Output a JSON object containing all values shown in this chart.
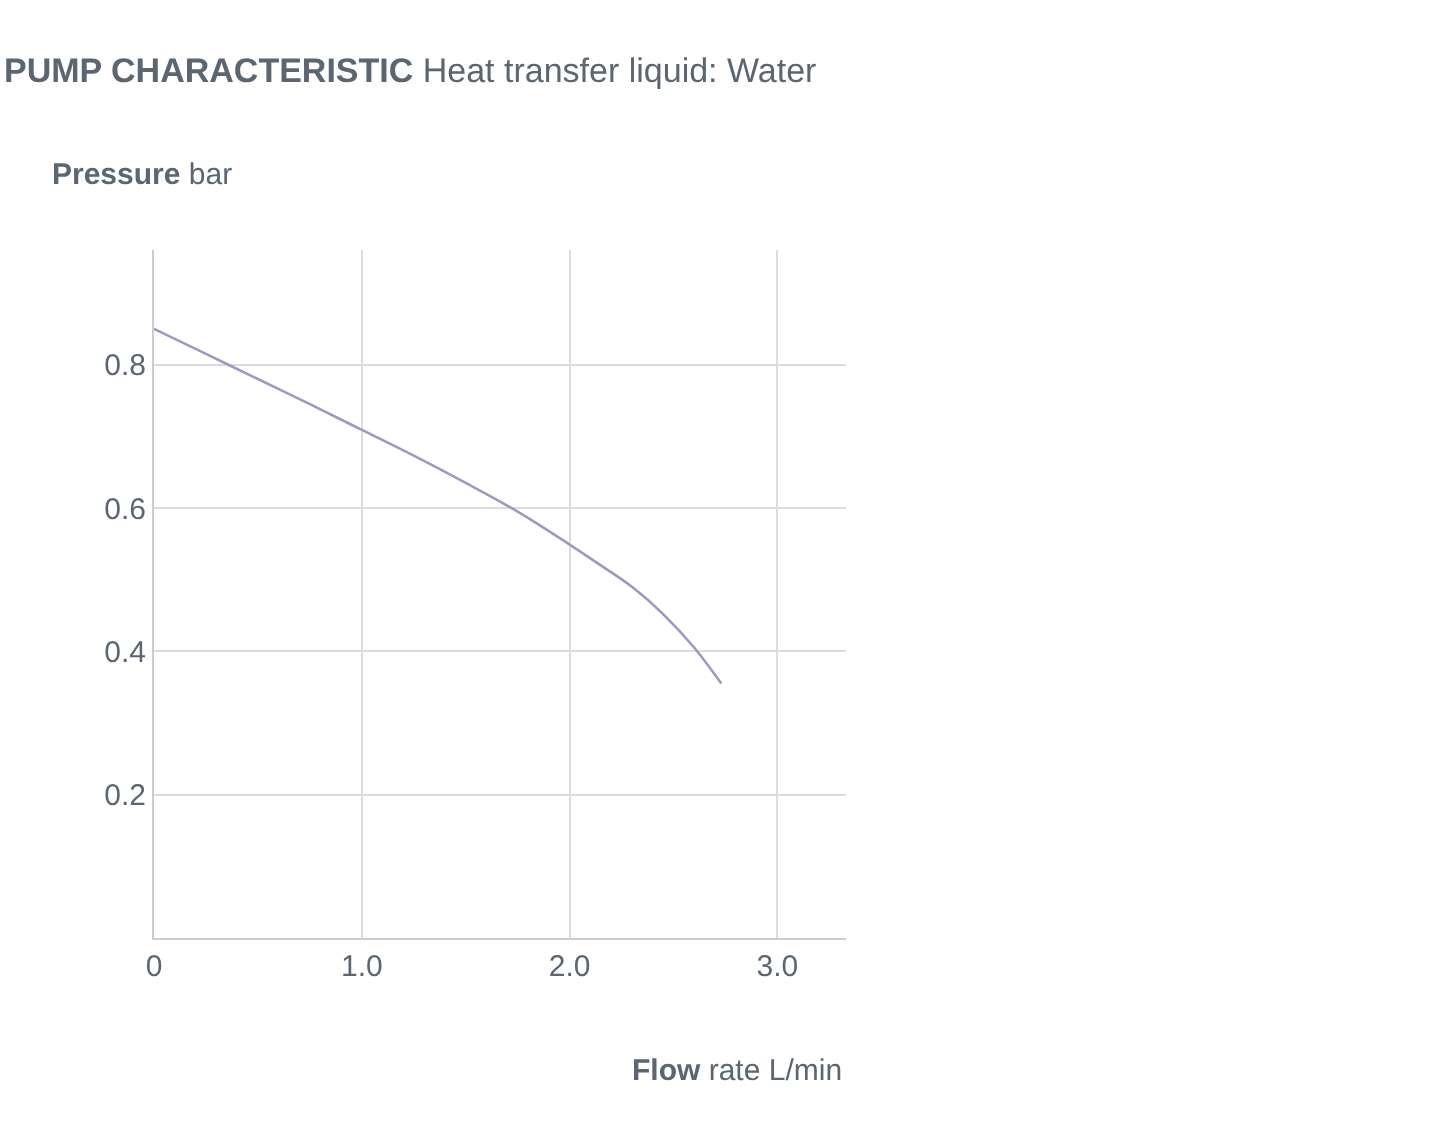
{
  "chart_data": {
    "type": "line",
    "title": "PUMP CHARACTERISTIC",
    "subtitle": "Heat transfer liquid: Water",
    "xlabel": "Flow rate L/min",
    "ylabel": "Pressure bar",
    "x": [
      0,
      0.25,
      0.5,
      0.75,
      1.0,
      1.25,
      1.5,
      1.75,
      2.0,
      2.15,
      2.3,
      2.45,
      2.6,
      2.73
    ],
    "series": [
      {
        "color": "#9a9ac2",
        "values": [
          0.85,
          0.815,
          0.78,
          0.745,
          0.709,
          0.673,
          0.635,
          0.595,
          0.549,
          0.52,
          0.49,
          0.452,
          0.405,
          0.355
        ]
      }
    ],
    "xlim": [
      0,
      3.33
    ],
    "ylim": [
      0,
      0.96
    ],
    "xticks": [
      0,
      {
        "value": 1,
        "label": "1.0"
      },
      {
        "value": 2,
        "label": "2.0"
      },
      {
        "value": 3,
        "label": "3.0"
      }
    ],
    "yticks": [
      0.2,
      0.4,
      0.6,
      0.8
    ],
    "grid": true,
    "legend": false,
    "marker": "none",
    "line_style": "solid"
  }
}
